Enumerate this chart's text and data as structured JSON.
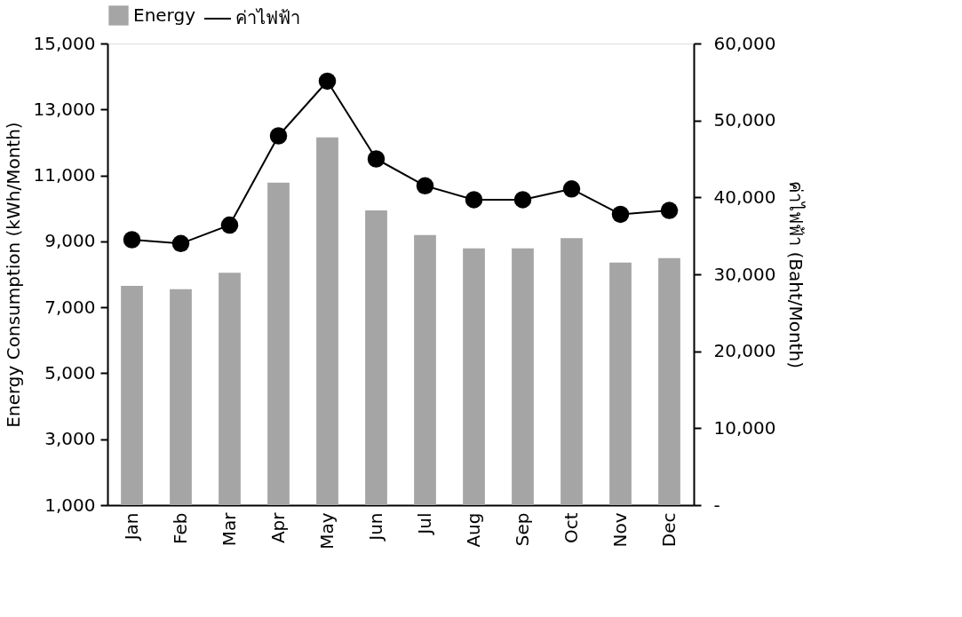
{
  "chart_data": {
    "type": "bar",
    "categories": [
      "Jan",
      "Feb",
      "Mar",
      "Apr",
      "May",
      "Jun",
      "Jul",
      "Aug",
      "Sep",
      "Oct",
      "Nov",
      "Dec"
    ],
    "ylabel": "Energy Consumption (kWh/Month)",
    "y2label": "ค่าไฟฟ้า (Baht/Month)",
    "ylim": [
      1000,
      15000
    ],
    "yticks": [
      {
        "value": 1000,
        "label": "1,000"
      },
      {
        "value": 3000,
        "label": "3,000"
      },
      {
        "value": 5000,
        "label": "5,000"
      },
      {
        "value": 7000,
        "label": "7,000"
      },
      {
        "value": 9000,
        "label": "9,000"
      },
      {
        "value": 11000,
        "label": "11,000"
      },
      {
        "value": 13000,
        "label": "13,000"
      },
      {
        "value": 15000,
        "label": "15,000"
      }
    ],
    "y2lim": [
      0,
      60000
    ],
    "y2ticks": [
      {
        "value": 0,
        "label": "-"
      },
      {
        "value": 10000,
        "label": "10,000"
      },
      {
        "value": 20000,
        "label": "20,000"
      },
      {
        "value": 30000,
        "label": "30,000"
      },
      {
        "value": 40000,
        "label": "40,000"
      },
      {
        "value": 50000,
        "label": "50,000"
      },
      {
        "value": 60000,
        "label": "60,000"
      }
    ],
    "series": [
      {
        "name": "Energy",
        "color": "#a5a5a5",
        "values": [
          7650,
          7550,
          8050,
          10780,
          12150,
          9940,
          9190,
          8790,
          8790,
          9100,
          8360,
          8490
        ]
      },
      {
        "name": "ค่าไฟฟ้า",
        "type": "line",
        "axis": "y2",
        "color": "#000000",
        "marker": "circle",
        "values": [
          34500,
          34000,
          36400,
          48000,
          55100,
          45000,
          41500,
          39700,
          39700,
          41100,
          37800,
          38300
        ]
      }
    ],
    "legend": "top",
    "grid": false
  }
}
